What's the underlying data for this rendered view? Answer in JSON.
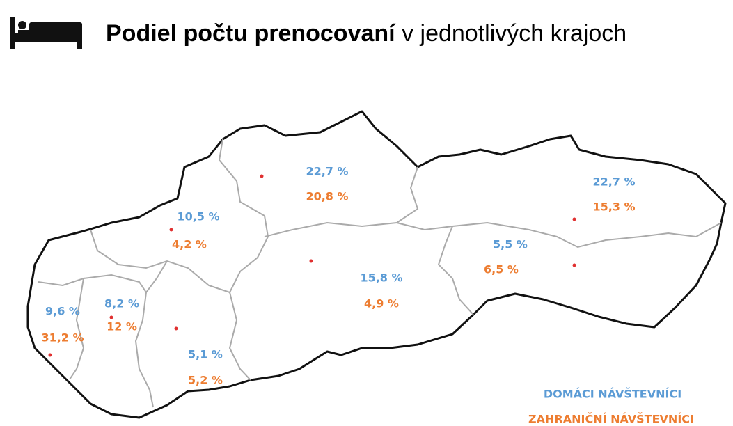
{
  "header": {
    "title_bold": "Podiel počtu prenocovaní",
    "title_rest": "v jednotlivých krajoch"
  },
  "regions": [
    {
      "domestic": "22,7 %",
      "foreign": "20,8 %"
    },
    {
      "domestic": "22,7 %",
      "foreign": "15,3 %"
    },
    {
      "domestic": "10,5 %",
      "foreign": "4,2 %"
    },
    {
      "domestic": "15,8 %",
      "foreign": "4,9 %"
    },
    {
      "domestic": "5,5 %",
      "foreign": "6,5 %"
    },
    {
      "domestic": "9,6 %",
      "foreign": "31,2 %"
    },
    {
      "domestic": "8,2 %",
      "foreign": "12 %"
    },
    {
      "domestic": "5,1 %",
      "foreign": "5,2 %"
    }
  ],
  "legend": {
    "domestic": "DOMÁCI NÁVŠTEVNÍCI",
    "foreign": "ZAHRANIČNÍ NÁVŠTEVNÍCI"
  }
}
